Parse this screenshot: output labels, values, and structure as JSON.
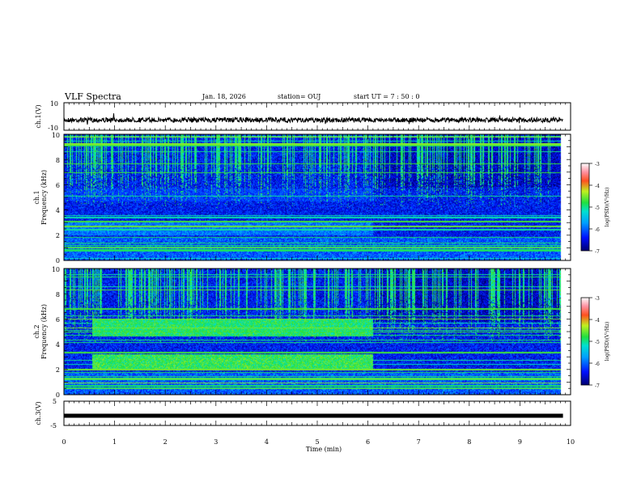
{
  "header": {
    "title": "VLF Spectra",
    "date": "Jan. 18, 2026",
    "station": "station= OUJ",
    "start_ut": "start  UT =   7 : 50 : 0"
  },
  "colors": {
    "background": "#ffffff",
    "axis": "#000000",
    "spectrogram_base": "#1a2f9a",
    "emission": "#39e07a",
    "line": "#55d6c0"
  },
  "chart_data": [
    {
      "type": "line",
      "panel": "ch1_waveform",
      "ylabel": "ch.1(V)",
      "ylim": [
        -10,
        10
      ],
      "yticks": [
        "10",
        "-10"
      ],
      "xlim": [
        0,
        10
      ],
      "trace_level": -2.5
    },
    {
      "type": "heatmap",
      "panel": "ch1_spectrogram",
      "ylabel": "ch.1\nFrequency (kHz)",
      "ylim": [
        0,
        10
      ],
      "yticks": [
        "0",
        "2",
        "4",
        "6",
        "8",
        "10"
      ],
      "xlim": [
        0,
        10
      ],
      "colorbar": {
        "label": "log(PSD)(V²/Hz)",
        "range": [
          -7,
          -3
        ],
        "ticks": [
          "-3",
          "-4",
          "-5",
          "-6",
          "-7"
        ]
      },
      "bands": [
        {
          "t_start": 0.0,
          "t_end": 6.1,
          "f_low": 2.0,
          "f_high": 3.0,
          "level": -5.9
        },
        {
          "t_start": 0.0,
          "t_end": 6.1,
          "f_low": 4.7,
          "f_high": 5.7,
          "level": -6.3
        }
      ],
      "data_end_min": 9.8
    },
    {
      "type": "heatmap",
      "panel": "ch2_spectrogram",
      "ylabel": "ch.2\nFrequency (kHz)",
      "ylim": [
        0,
        10
      ],
      "yticks": [
        "0",
        "2",
        "4",
        "6",
        "8",
        "10"
      ],
      "xlim": [
        0,
        10
      ],
      "colorbar": {
        "label": "log(PSD)(V²/Hz)",
        "range": [
          -7,
          -3
        ],
        "ticks": [
          "-3",
          "-4",
          "-5",
          "-6",
          "-7"
        ]
      },
      "bands": [
        {
          "t_start": 0.55,
          "t_end": 6.1,
          "f_low": 2.0,
          "f_high": 3.2,
          "level": -4.8
        },
        {
          "t_start": 0.55,
          "t_end": 6.1,
          "f_low": 4.6,
          "f_high": 6.0,
          "level": -4.9
        }
      ],
      "data_end_min": 9.8
    },
    {
      "type": "line",
      "panel": "ch3_waveform",
      "ylabel": "ch.3(V)",
      "ylim": [
        -5,
        5
      ],
      "yticks": [
        "5",
        "-5"
      ],
      "xlim": [
        0,
        10
      ],
      "trace_level": -1.0
    }
  ],
  "xaxis": {
    "label": "Time (min)",
    "ticks": [
      "0",
      "1",
      "2",
      "3",
      "4",
      "5",
      "6",
      "7",
      "8",
      "9",
      "10"
    ]
  }
}
